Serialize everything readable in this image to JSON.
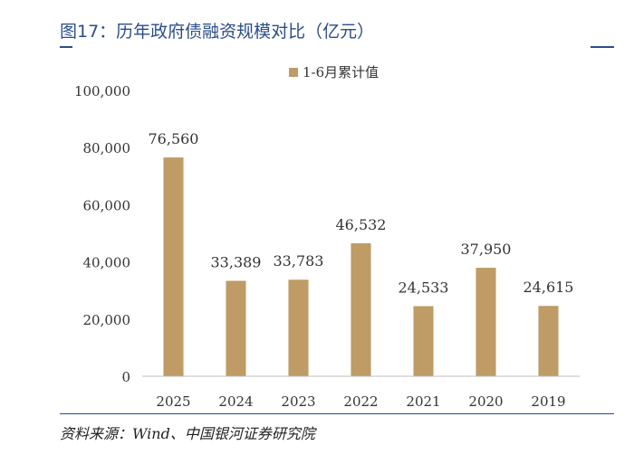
{
  "header": {
    "title": "图17：历年政府债融资规模对比（亿元）"
  },
  "footer": {
    "source": "资料来源：Wind、中国银河证券研究院"
  },
  "colors": {
    "bar": "#bf9b65",
    "accent": "#2a4e8a",
    "axis": "#bfbfbf"
  },
  "chart_data": {
    "type": "bar",
    "title": "",
    "categories": [
      "2025",
      "2024",
      "2023",
      "2022",
      "2021",
      "2020",
      "2019"
    ],
    "series": [
      {
        "name": "1-6月累计值",
        "values": [
          76560,
          33389,
          33783,
          46532,
          24533,
          37950,
          24615
        ],
        "data_labels": [
          "76,560",
          "33,389",
          "33,783",
          "46,532",
          "24,533",
          "37,950",
          "24,615"
        ]
      }
    ],
    "yticks": [
      "0",
      "20,000",
      "40,000",
      "60,000",
      "80,000",
      "100,000"
    ],
    "ytick_values": [
      0,
      20000,
      40000,
      60000,
      80000,
      100000
    ],
    "ylim": [
      0,
      100000
    ],
    "legend": "top-center",
    "grid": false,
    "xlabel": "",
    "ylabel": ""
  }
}
